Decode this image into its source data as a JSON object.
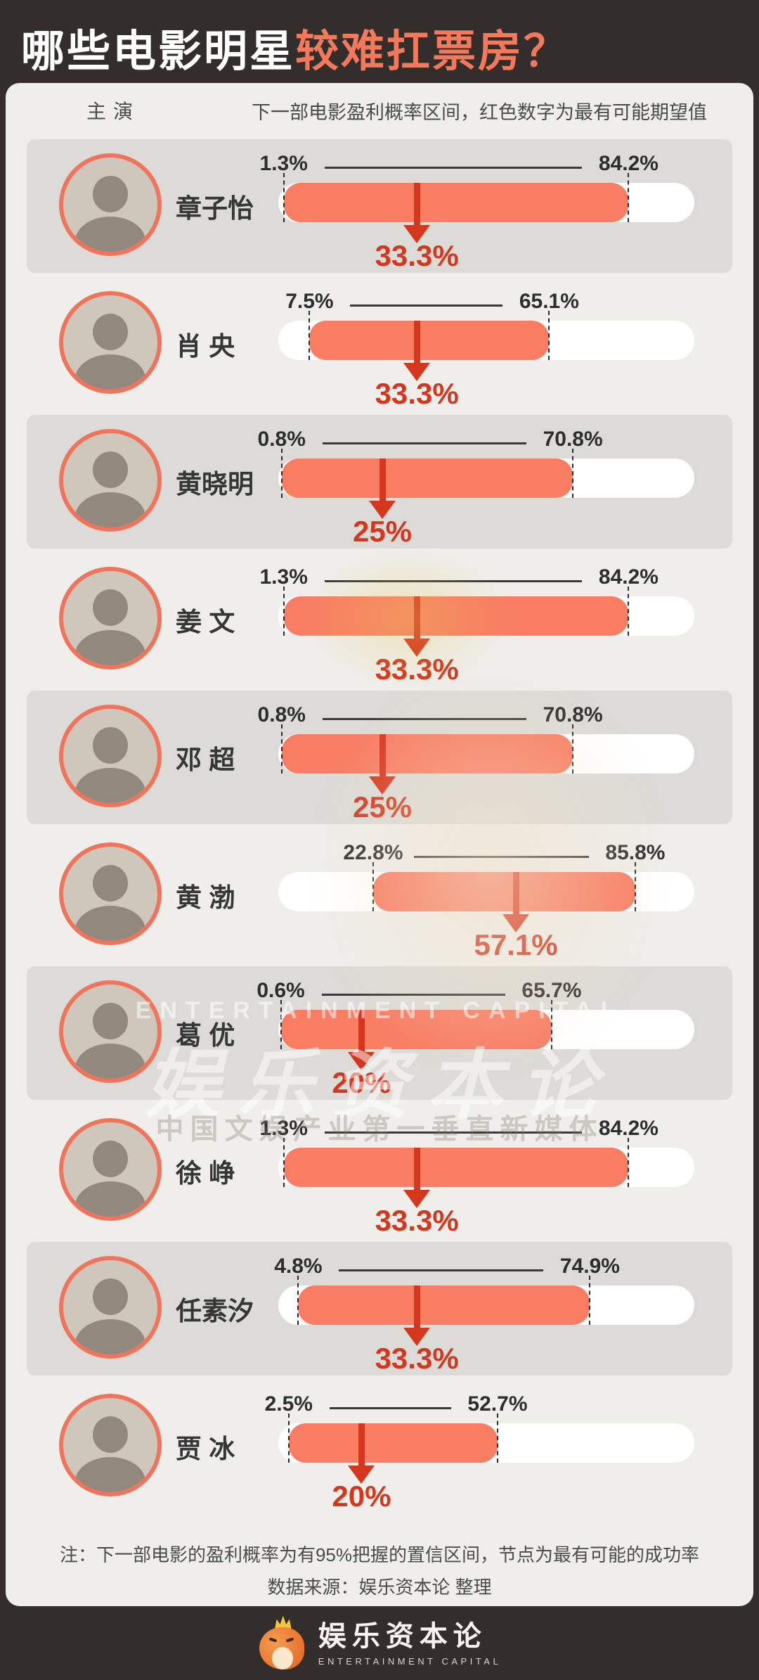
{
  "title": {
    "prefix": "哪些电影明星",
    "highlight": "较难扛票房？"
  },
  "columns": {
    "actor": "主演",
    "desc": "下一部电影盈利概率区间，红色数字为最有可能期望值"
  },
  "chart_data": {
    "type": "bar",
    "subtype": "interval-range",
    "title": "哪些电影明星较难扛票房？",
    "xlabel": "下一部电影盈利概率（%）",
    "axis_range_pct": [
      0,
      100
    ],
    "legend": "红色数字为最有可能期望值",
    "categories": [
      "章子怡",
      "肖央",
      "黄晓明",
      "姜文",
      "邓超",
      "黄渤",
      "葛优",
      "徐峥",
      "任素汐",
      "贾冰"
    ],
    "rows": [
      {
        "name": "章子怡",
        "display_name": "章子怡",
        "low": 1.3,
        "high": 84.2,
        "expected": 33.3,
        "low_label": "1.3%",
        "high_label": "84.2%",
        "expected_label": "33.3%"
      },
      {
        "name": "肖央",
        "display_name": "肖 央",
        "low": 7.5,
        "high": 65.1,
        "expected": 33.3,
        "low_label": "7.5%",
        "high_label": "65.1%",
        "expected_label": "33.3%"
      },
      {
        "name": "黄晓明",
        "display_name": "黄晓明",
        "low": 0.8,
        "high": 70.8,
        "expected": 25,
        "low_label": "0.8%",
        "high_label": "70.8%",
        "expected_label": "25%"
      },
      {
        "name": "姜文",
        "display_name": "姜 文",
        "low": 1.3,
        "high": 84.2,
        "expected": 33.3,
        "low_label": "1.3%",
        "high_label": "84.2%",
        "expected_label": "33.3%"
      },
      {
        "name": "邓超",
        "display_name": "邓 超",
        "low": 0.8,
        "high": 70.8,
        "expected": 25,
        "low_label": "0.8%",
        "high_label": "70.8%",
        "expected_label": "25%"
      },
      {
        "name": "黄渤",
        "display_name": "黄 渤",
        "low": 22.8,
        "high": 85.8,
        "expected": 57.1,
        "low_label": "22.8%",
        "high_label": "85.8%",
        "expected_label": "57.1%"
      },
      {
        "name": "葛优",
        "display_name": "葛 优",
        "low": 0.6,
        "high": 65.7,
        "expected": 20,
        "low_label": "0.6%",
        "high_label": "65.7%",
        "expected_label": "20%"
      },
      {
        "name": "徐峥",
        "display_name": "徐 峥",
        "low": 1.3,
        "high": 84.2,
        "expected": 33.3,
        "low_label": "1.3%",
        "high_label": "84.2%",
        "expected_label": "33.3%"
      },
      {
        "name": "任素汐",
        "display_name": "任素汐",
        "low": 4.8,
        "high": 74.9,
        "expected": 33.3,
        "low_label": "4.8%",
        "high_label": "74.9%",
        "expected_label": "33.3%"
      },
      {
        "name": "贾冰",
        "display_name": "贾 冰",
        "low": 2.5,
        "high": 52.7,
        "expected": 20,
        "low_label": "2.5%",
        "high_label": "52.7%",
        "expected_label": "20%"
      }
    ]
  },
  "notes": {
    "line1": "注：下一部电影的盈利概率为有95%把握的置信区间，节点为最有可能的成功率",
    "line2": "数据来源：娱乐资本论 整理"
  },
  "watermark": {
    "en": "ENTERTAINMENT CAPITAL",
    "cn": "娱乐资本论",
    "sub": "中国文娱产业第一垂直新媒体"
  },
  "brand": {
    "cn": "娱乐资本论",
    "en": "ENTERTAINMENT CAPITAL"
  },
  "colors": {
    "page_bg": "#332e2b",
    "panel_bg": "#efeeeb",
    "row_shade": "#dcdbd7",
    "bar_fill": "#f87d63",
    "bar_track": "#ffffff",
    "accent_red": "#d5371e",
    "title_highlight": "#f3785c",
    "avatar_ring": "#f0745b",
    "text_dark": "#363636",
    "note_gray": "#4b4b4b"
  }
}
